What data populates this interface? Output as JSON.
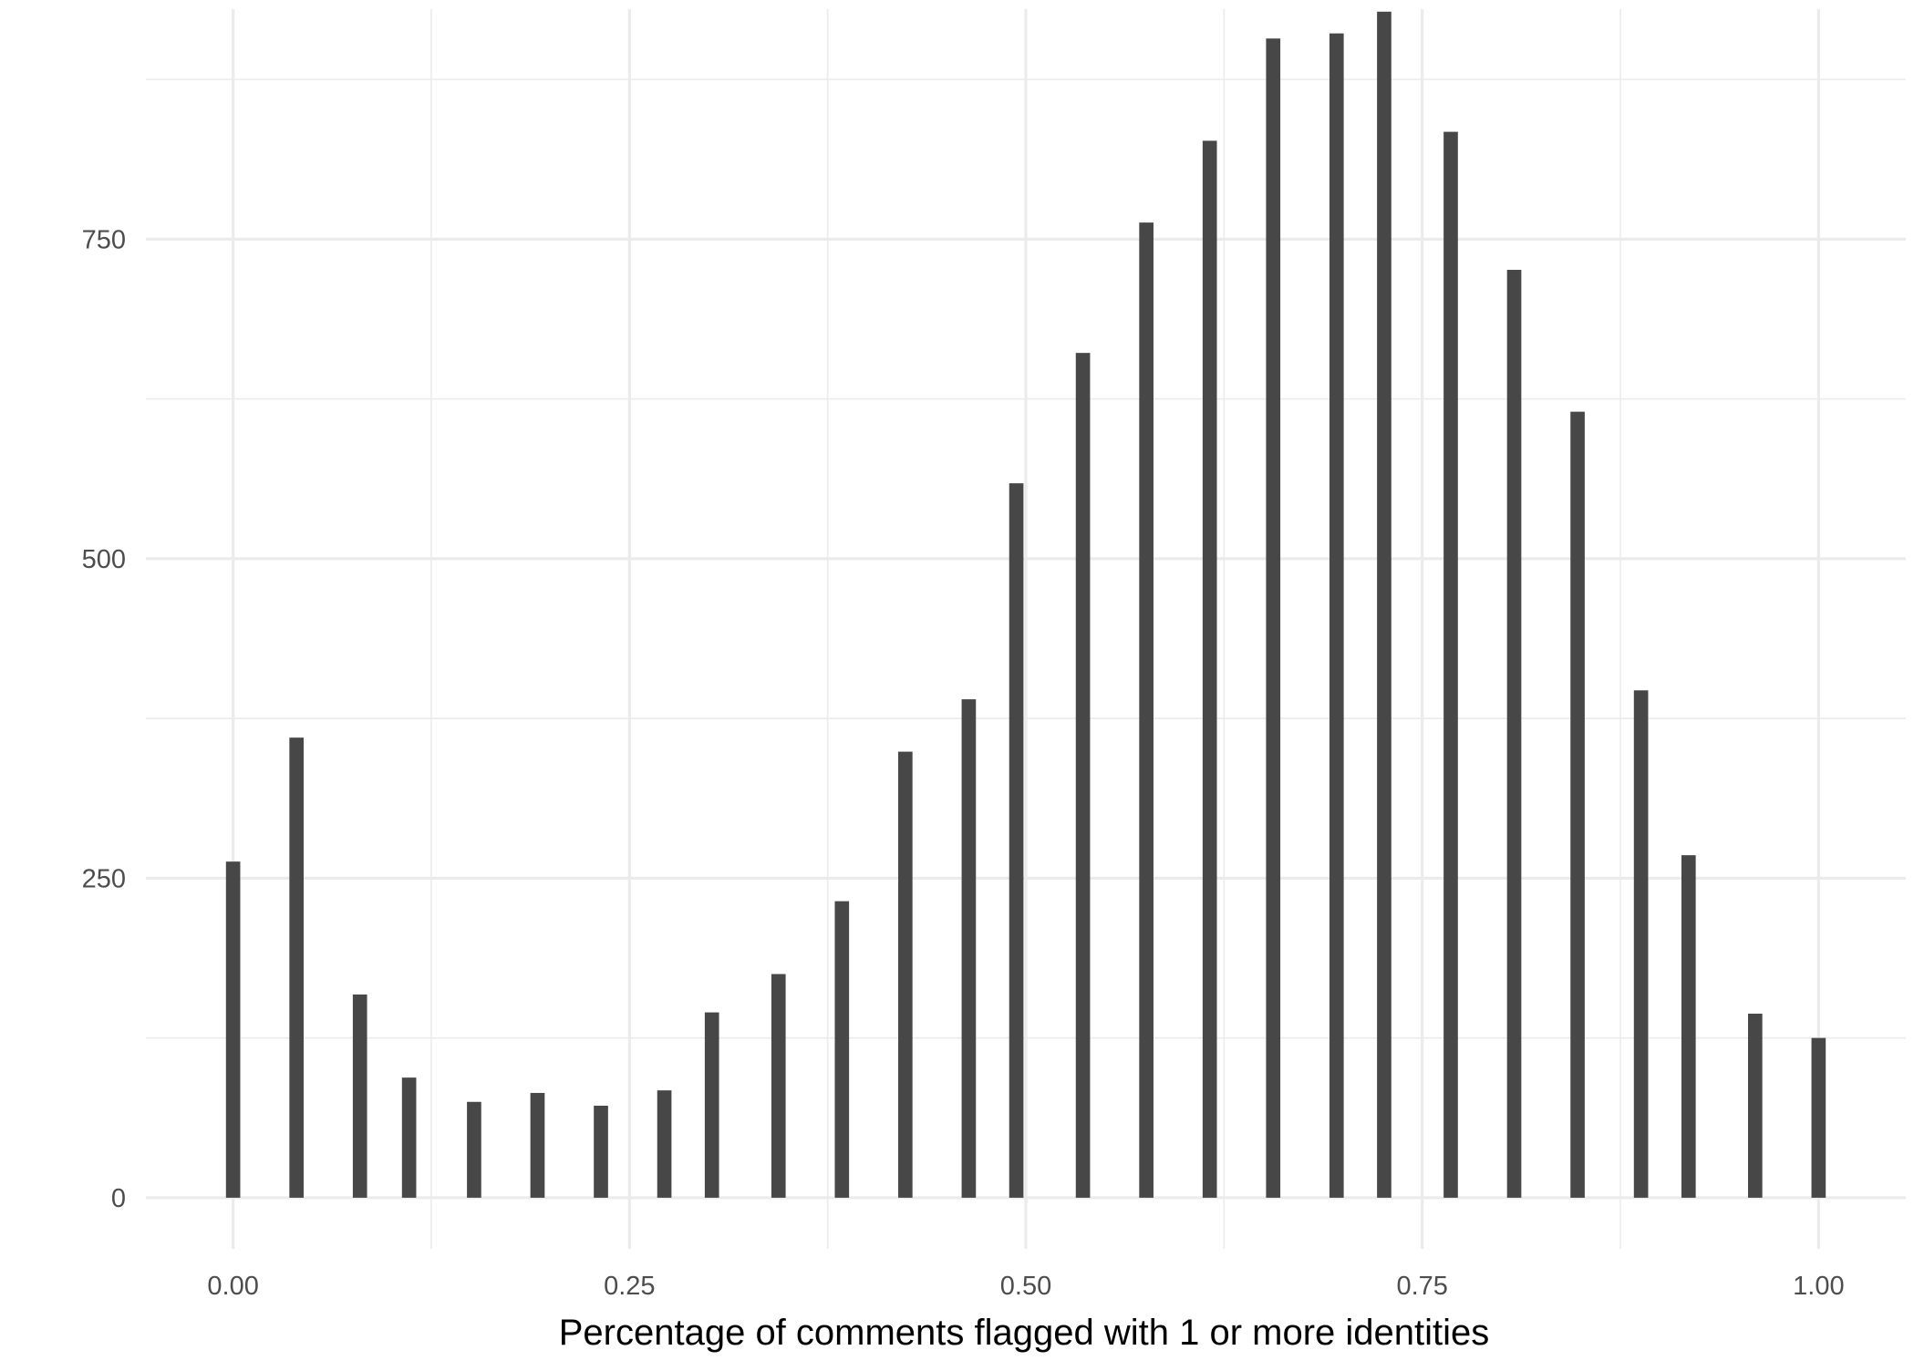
{
  "chart_data": {
    "type": "bar",
    "xlabel": "Percentage of comments flagged with 1 or more identities",
    "ylabel": "",
    "xlim": [
      -0.055,
      1.055
    ],
    "ylim": [
      -40,
      930
    ],
    "x_major_ticks": [
      0.0,
      0.25,
      0.5,
      0.75,
      1.0
    ],
    "x_tick_labels": [
      "0.00",
      "0.25",
      "0.50",
      "0.75",
      "1.00"
    ],
    "x_minor_ticks": [
      0.125,
      0.375,
      0.625,
      0.875
    ],
    "y_major_ticks": [
      0,
      250,
      500,
      750
    ],
    "y_tick_labels": [
      "0",
      "250",
      "500",
      "750"
    ],
    "y_minor_ticks": [
      125,
      375,
      625,
      875
    ],
    "grid": true,
    "bar_width": 0.009,
    "bar_color": "#474747",
    "points": [
      {
        "x": 0.0,
        "y": 263
      },
      {
        "x": 0.04,
        "y": 360
      },
      {
        "x": 0.08,
        "y": 159
      },
      {
        "x": 0.111,
        "y": 94
      },
      {
        "x": 0.152,
        "y": 75
      },
      {
        "x": 0.192,
        "y": 82
      },
      {
        "x": 0.232,
        "y": 72
      },
      {
        "x": 0.272,
        "y": 84
      },
      {
        "x": 0.302,
        "y": 145
      },
      {
        "x": 0.344,
        "y": 175
      },
      {
        "x": 0.384,
        "y": 232
      },
      {
        "x": 0.424,
        "y": 349
      },
      {
        "x": 0.464,
        "y": 390
      },
      {
        "x": 0.494,
        "y": 559
      },
      {
        "x": 0.536,
        "y": 661
      },
      {
        "x": 0.576,
        "y": 763
      },
      {
        "x": 0.616,
        "y": 827
      },
      {
        "x": 0.656,
        "y": 907
      },
      {
        "x": 0.696,
        "y": 911
      },
      {
        "x": 0.726,
        "y": 928
      },
      {
        "x": 0.768,
        "y": 834
      },
      {
        "x": 0.808,
        "y": 726
      },
      {
        "x": 0.848,
        "y": 615
      },
      {
        "x": 0.888,
        "y": 397
      },
      {
        "x": 0.918,
        "y": 268
      },
      {
        "x": 0.96,
        "y": 144
      },
      {
        "x": 1.0,
        "y": 125
      }
    ]
  }
}
